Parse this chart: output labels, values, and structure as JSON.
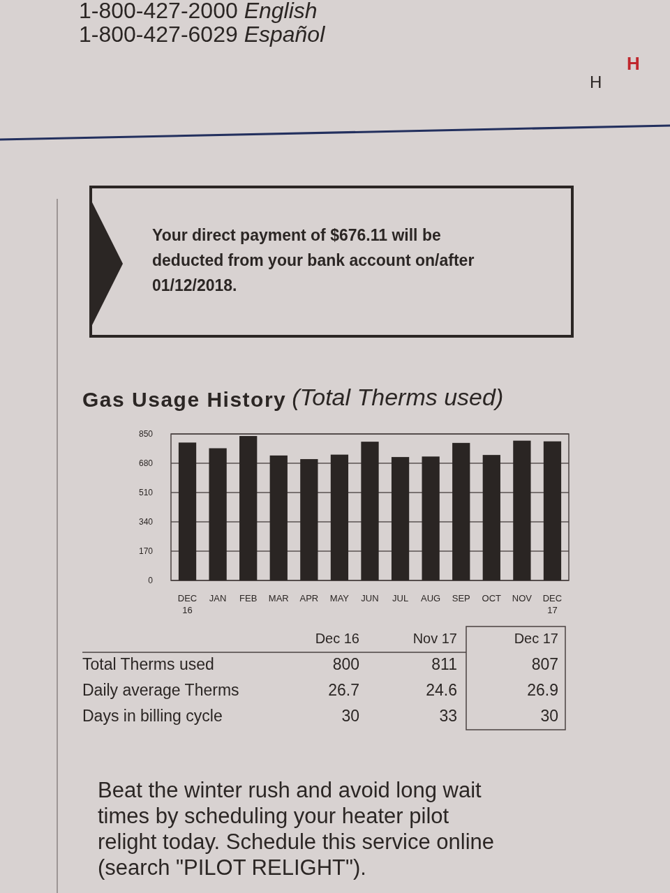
{
  "chart_data": {
    "type": "bar",
    "title": "Gas Usage History",
    "subtitle": "(Total Therms used)",
    "categories": [
      "DEC 16",
      "JAN",
      "FEB",
      "MAR",
      "APR",
      "MAY",
      "JUN",
      "JUL",
      "AUG",
      "SEP",
      "OCT",
      "NOV",
      "DEC 17"
    ],
    "values": [
      800,
      767,
      838,
      725,
      704,
      730,
      805,
      716,
      719,
      798,
      728,
      811,
      807
    ],
    "color": "#2a2523",
    "ylim": [
      0,
      850
    ],
    "yticks": [
      0,
      170,
      340,
      510,
      680,
      850
    ],
    "grid": "y",
    "annotations": [
      "1-800-427-2000 English",
      "1-800-427-6029 Español",
      "H",
      "H",
      "Your direct payment of $676.11 will be\ndeducted from your bank account on/after\n01/12/2018.",
      "\tDec 16\tNov 17\tDec 17",
      "Total Therms used\t800\t811\t807",
      "Daily average Therms\t26.7\t24.6\t26.9",
      "Days in billing cycle\t30\t33\t30",
      "Beat the winter rush and avoid long wait\ntimes by scheduling your heater pilot\nrelight today. Schedule this service online\n(search \"PILOT RELIGHT\")."
    ]
  }
}
